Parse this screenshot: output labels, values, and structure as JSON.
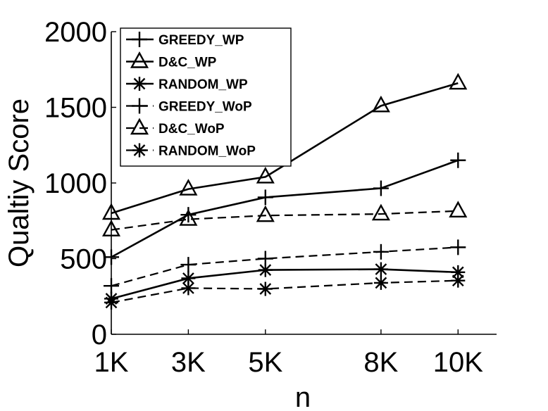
{
  "chart_data": {
    "type": "line",
    "title": "",
    "xlabel": "n",
    "ylabel": "Qualtiy Score",
    "x": [
      1000,
      3000,
      5000,
      8000,
      10000
    ],
    "x_tick_labels": [
      "1K",
      "3K",
      "5K",
      "8K",
      "10K"
    ],
    "xlim": [
      1000,
      11000
    ],
    "ylim": [
      0,
      2000
    ],
    "y_ticks": [
      0,
      500,
      1000,
      1500,
      2000
    ],
    "y_tick_labels": [
      "0",
      "500",
      "1000",
      "1500",
      "2000"
    ],
    "grid": false,
    "legend_position": "top-left",
    "series": [
      {
        "name": "GREEDY_WP",
        "marker": "plus",
        "dash": "solid",
        "values": [
          510,
          790,
          905,
          965,
          1150
        ]
      },
      {
        "name": "D&C_WP",
        "marker": "triangle",
        "dash": "solid",
        "values": [
          800,
          960,
          1040,
          1510,
          1660
        ]
      },
      {
        "name": "RANDOM_WP",
        "marker": "asterisk",
        "dash": "solid",
        "values": [
          235,
          370,
          425,
          430,
          410
        ]
      },
      {
        "name": "GREEDY_WoP",
        "marker": "plus",
        "dash": "dashed",
        "values": [
          320,
          460,
          500,
          545,
          575
        ]
      },
      {
        "name": "D&C_WoP",
        "marker": "triangle",
        "dash": "dashed",
        "values": [
          690,
          760,
          785,
          795,
          815
        ]
      },
      {
        "name": "RANDOM_WoP",
        "marker": "asterisk",
        "dash": "dashed",
        "values": [
          210,
          305,
          300,
          340,
          355
        ]
      }
    ]
  }
}
